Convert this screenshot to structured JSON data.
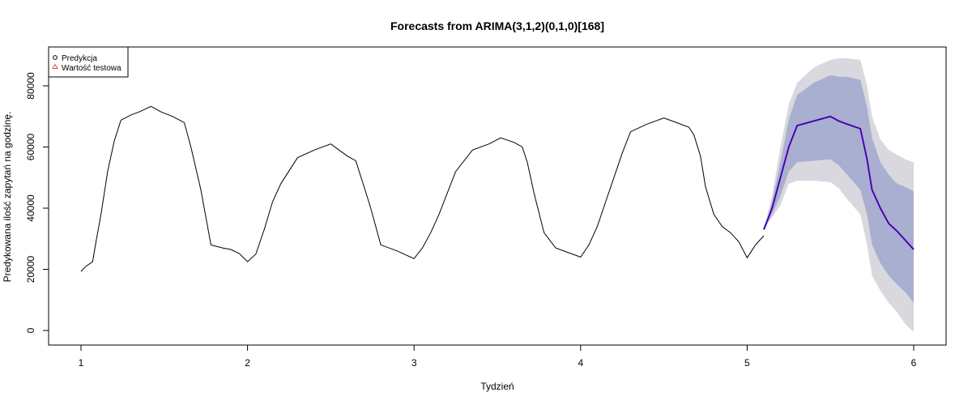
{
  "chart_data": {
    "type": "line",
    "title": "Forecasts from ARIMA(3,1,2)(0,1,0)[168]",
    "xlabel": "Tydzień",
    "ylabel": "Predykowana ilość zapytań na godzinę.",
    "xlim": [
      1,
      6
    ],
    "ylim": [
      0,
      90000
    ],
    "x_ticks": [
      1,
      2,
      3,
      4,
      5,
      6
    ],
    "x_tick_labels": [
      "1",
      "2",
      "3",
      "4",
      "5",
      "6"
    ],
    "y_ticks": [
      0,
      20000,
      40000,
      60000,
      80000
    ],
    "y_tick_labels": [
      "0",
      "20000",
      "40000",
      "60000",
      "80000"
    ],
    "grid": false,
    "legend_position": "top-left",
    "colors": {
      "history": "#000000",
      "forecast": "#0000ff",
      "test": "#e05050",
      "band80": "#a9afd0",
      "band95": "#d8d8de"
    },
    "legend": [
      {
        "label": "Predykcja",
        "marker": "circle",
        "color": "#000000"
      },
      {
        "label": "Wartość testowa",
        "marker": "triangle",
        "color": "#e05050"
      }
    ],
    "series": [
      {
        "role": "history",
        "x": [
          1.0,
          1.03,
          1.07,
          1.09,
          1.12,
          1.16,
          1.2,
          1.24,
          1.3,
          1.35,
          1.42,
          1.48,
          1.55,
          1.62,
          1.66,
          1.72,
          1.78,
          1.85,
          1.9,
          1.95,
          2.0,
          2.05,
          2.1,
          2.15,
          2.2,
          2.3,
          2.4,
          2.5,
          2.55,
          2.6,
          2.65,
          2.7,
          2.74,
          2.8,
          2.9,
          3.0,
          3.05,
          3.1,
          3.15,
          3.2,
          3.25,
          3.35,
          3.45,
          3.52,
          3.6,
          3.65,
          3.68,
          3.72,
          3.78,
          3.85,
          3.9,
          4.0,
          4.05,
          4.1,
          4.15,
          4.2,
          4.25,
          4.3,
          4.4,
          4.5,
          4.55,
          4.65,
          4.68,
          4.72,
          4.75,
          4.8,
          4.85,
          4.9,
          4.95,
          5.0,
          5.05,
          5.1
        ],
        "y": [
          19300,
          21000,
          22500,
          29000,
          38000,
          52000,
          62000,
          68800,
          70500,
          71500,
          73300,
          71500,
          70000,
          68000,
          60000,
          46000,
          28000,
          27000,
          26500,
          25200,
          22500,
          25000,
          33000,
          42000,
          48000,
          56500,
          59000,
          61000,
          59000,
          57000,
          55500,
          47000,
          40000,
          28000,
          26000,
          23500,
          27000,
          32000,
          38000,
          45000,
          52000,
          59000,
          61000,
          63000,
          61500,
          60000,
          55000,
          45000,
          32000,
          27000,
          26000,
          24000,
          28000,
          34000,
          42000,
          50000,
          58000,
          65000,
          67500,
          69500,
          68500,
          66500,
          64000,
          57000,
          47000,
          38000,
          34000,
          32000,
          29000,
          23800,
          28000,
          31000
        ]
      },
      {
        "role": "forecast",
        "name": "Predykcja",
        "x": [
          5.1,
          5.15,
          5.2,
          5.25,
          5.3,
          5.4,
          5.5,
          5.55,
          5.6,
          5.68,
          5.72,
          5.75,
          5.8,
          5.85,
          5.9,
          5.95,
          6.0
        ],
        "y": [
          33000,
          40000,
          50000,
          60000,
          67000,
          68500,
          70000,
          68500,
          67500,
          66000,
          56000,
          46000,
          40000,
          35000,
          32500,
          29500,
          26500
        ],
        "lo80": [
          33000,
          38000,
          44000,
          52000,
          55000,
          55500,
          56000,
          54000,
          51000,
          46000,
          38000,
          28000,
          22000,
          18000,
          15000,
          12500,
          9000
        ],
        "hi80": [
          33000,
          42000,
          55000,
          69000,
          77000,
          81000,
          83500,
          83000,
          83000,
          82000,
          73000,
          63000,
          55000,
          51000,
          48000,
          47000,
          45500
        ],
        "lo95": [
          33000,
          37000,
          41000,
          48000,
          49000,
          49000,
          48500,
          46500,
          43000,
          38000,
          28000,
          18000,
          13000,
          9000,
          6000,
          2000,
          -500
        ],
        "hi95": [
          33000,
          44000,
          60000,
          74000,
          81000,
          86000,
          88500,
          89000,
          89000,
          88500,
          80000,
          70000,
          62500,
          59000,
          57500,
          56000,
          55000
        ]
      }
    ]
  }
}
